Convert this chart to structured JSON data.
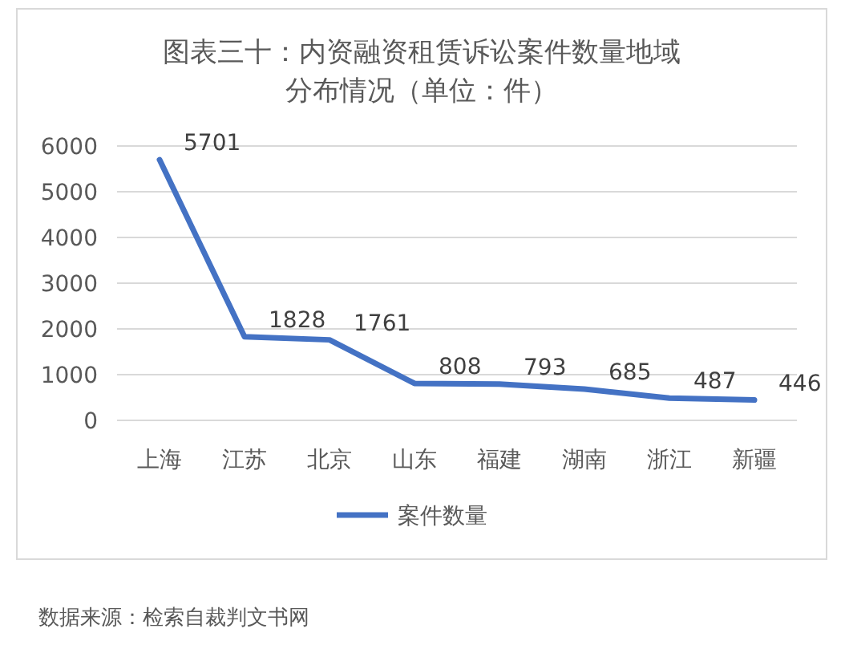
{
  "chart_data": {
    "type": "line",
    "title": "图表三十：内资融资租赁诉讼案件数量地域分布情况（单位：件）",
    "categories": [
      "上海",
      "江苏",
      "北京",
      "山东",
      "福建",
      "湖南",
      "浙江",
      "新疆"
    ],
    "series": [
      {
        "name": "案件数量",
        "color": "#4472c4",
        "values": [
          5701,
          1828,
          1761,
          808,
          793,
          685,
          487,
          446
        ]
      }
    ],
    "ylim": [
      0,
      6000
    ],
    "yticks": [
      0,
      1000,
      2000,
      3000,
      4000,
      5000,
      6000
    ],
    "grid": "y",
    "legend": "bottom",
    "data_labels": true,
    "marker": "none",
    "line_style": "solid",
    "annotations": [
      "数据来源：检索自裁判文书网"
    ]
  }
}
